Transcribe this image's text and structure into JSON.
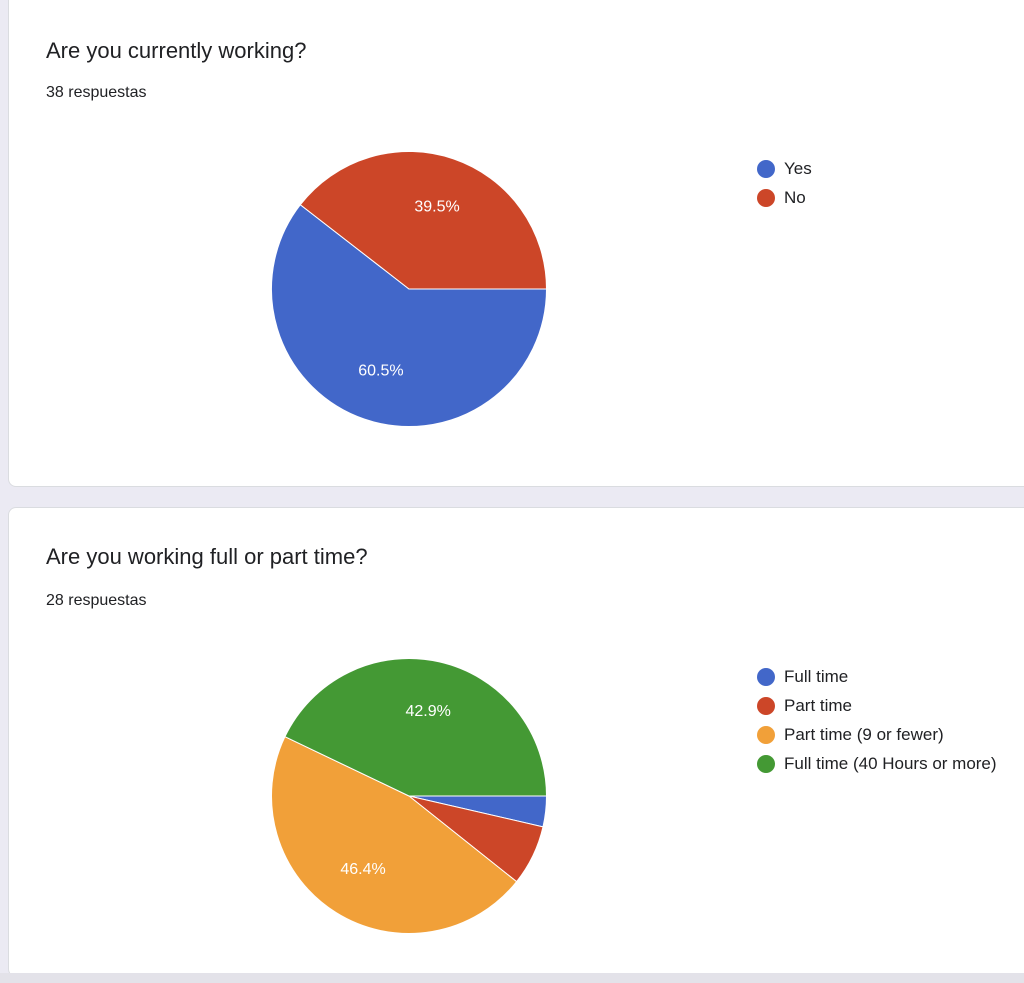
{
  "questions": [
    {
      "title": "Are you currently working?",
      "responses": "38 respuestas"
    },
    {
      "title": "Are you working full or part time?",
      "responses": "28 respuestas"
    }
  ],
  "chart_data": [
    {
      "type": "pie",
      "categories": [
        "Yes",
        "No"
      ],
      "values": [
        60.5,
        39.5
      ],
      "value_labels": [
        "60.5%",
        "39.5%"
      ],
      "colors": [
        "#4267c9",
        "#cc4628"
      ],
      "legend_position": "right"
    },
    {
      "type": "pie",
      "categories": [
        "Full time",
        "Part time",
        "Part time (9 or fewer)",
        "Full time (40 Hours or more)"
      ],
      "values": [
        3.6,
        7.1,
        46.4,
        42.9
      ],
      "value_labels": [
        "",
        "",
        "46.4%",
        "42.9%"
      ],
      "colors": [
        "#4267c9",
        "#cc4628",
        "#f1a039",
        "#449934"
      ],
      "legend_position": "right"
    }
  ]
}
